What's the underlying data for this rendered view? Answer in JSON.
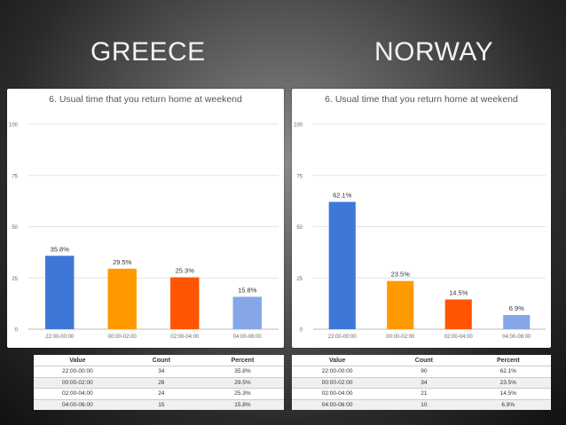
{
  "headings": {
    "left": "GREECE",
    "right": "NORWAY"
  },
  "chart_data": [
    {
      "type": "bar",
      "title": "6. Usual time that you return home at weekend",
      "categories": [
        "22:00-00:00",
        "00:00-02:00",
        "02:00-04:00",
        "04:00-06:00"
      ],
      "values": [
        35.8,
        29.5,
        25.3,
        15.8
      ],
      "data_labels": [
        "35.8%",
        "29.5%",
        "25.3%",
        "15.8%"
      ],
      "yticks": [
        "0",
        "25",
        "50",
        "75",
        "100"
      ],
      "ylim": [
        0,
        100
      ],
      "colors": [
        "#3d78d8",
        "#ff9900",
        "#ff5500",
        "#85a7e8"
      ],
      "grid": true
    },
    {
      "type": "bar",
      "title": "6. Usual time that you return home at weekend",
      "categories": [
        "22:00-00:00",
        "00:00-02:00",
        "02:00-04:00",
        "04:00-06:00"
      ],
      "values": [
        62.1,
        23.5,
        14.5,
        6.9
      ],
      "data_labels": [
        "62.1%",
        "23.5%",
        "14.5%",
        "6.9%"
      ],
      "yticks": [
        "0",
        "25",
        "50",
        "75",
        "100"
      ],
      "ylim": [
        0,
        100
      ],
      "colors": [
        "#3d78d8",
        "#ff9900",
        "#ff5500",
        "#85a7e8"
      ],
      "grid": true
    }
  ],
  "tables": {
    "headers": [
      "Value",
      "Count",
      "Percent"
    ],
    "greece": [
      [
        "22:00-00:00",
        "34",
        "35.8%"
      ],
      [
        "00:00-02:00",
        "28",
        "29.5%"
      ],
      [
        "02:00-04:00",
        "24",
        "25.3%"
      ],
      [
        "04:00-06:00",
        "15",
        "15.8%"
      ]
    ],
    "norway": [
      [
        "22:00-00:00",
        "90",
        "62.1%"
      ],
      [
        "00:00-02:00",
        "34",
        "23.5%"
      ],
      [
        "02:00-04:00",
        "21",
        "14.5%"
      ],
      [
        "04:00-06:00",
        "10",
        "6.9%"
      ]
    ]
  }
}
